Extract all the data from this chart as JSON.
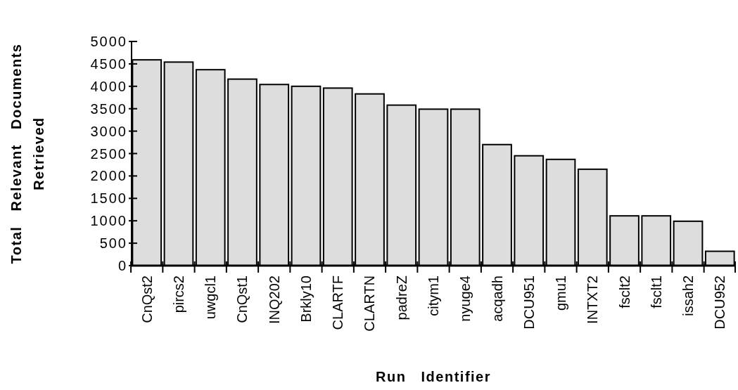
{
  "chart_data": {
    "type": "bar",
    "xlabel": "Run   Identifier",
    "ylabel": "Total   Relevant   Documents\nRetrieved",
    "categories": [
      "CnQst2",
      "pircs2",
      "uwgcl1",
      "CnQst1",
      "INQ202",
      "Brkly10",
      "CLARTF",
      "CLARTN",
      "padreZ",
      "citym1",
      "nyuge4",
      "acqadh",
      "DCU951",
      "gmu1",
      "INTXT2",
      "fsclt2",
      "fsclt1",
      "issah2",
      "DCU952"
    ],
    "values": [
      4590,
      4540,
      4370,
      4160,
      4040,
      4000,
      3960,
      3830,
      3580,
      3490,
      3490,
      2700,
      2450,
      2370,
      2150,
      1110,
      1110,
      990,
      320
    ],
    "color": "#dddddd",
    "ylim": [
      0,
      5000
    ],
    "yticks": [
      0,
      500,
      1000,
      1500,
      2000,
      2500,
      3000,
      3500,
      4000,
      4500,
      5000
    ],
    "grid": false
  }
}
